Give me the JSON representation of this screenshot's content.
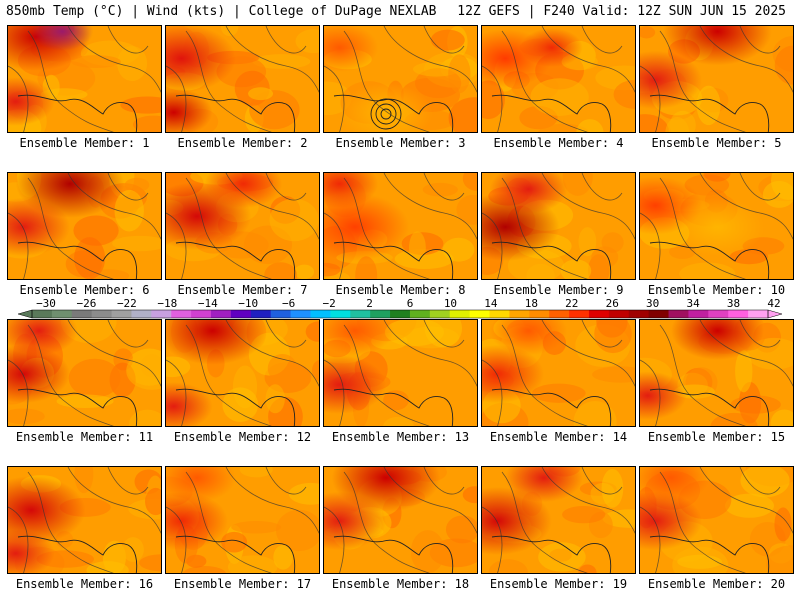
{
  "header": {
    "left": "850mb Temp (°C) | Wind (kts) | College of DuPage NEXLAB",
    "right": "12Z GEFS | F240 Valid: 12Z SUN JUN 15 2025"
  },
  "panels": [
    {
      "caption": "Ensemble Member: 1",
      "hot": [
        [
          0.18,
          0.1,
          0.35,
          "#cc0000"
        ],
        [
          0.35,
          0.05,
          0.2,
          "#9b1a6a"
        ],
        [
          0.05,
          0.7,
          0.25,
          "#e31d10"
        ]
      ]
    },
    {
      "caption": "Ensemble Member: 2",
      "hot": [
        [
          0.1,
          0.3,
          0.35,
          "#e0140c"
        ],
        [
          0.05,
          0.8,
          0.25,
          "#cc0000"
        ]
      ]
    },
    {
      "caption": "Ensemble Member: 3",
      "hot": [
        [
          0.1,
          0.2,
          0.25,
          "#ff5a00"
        ],
        [
          0.4,
          0.8,
          0.3,
          "#ffb400"
        ]
      ]
    },
    {
      "caption": "Ensemble Member: 4",
      "hot": [
        [
          0.15,
          0.3,
          0.3,
          "#ff3a00"
        ],
        [
          0.45,
          0.2,
          0.2,
          "#f02a05"
        ]
      ]
    },
    {
      "caption": "Ensemble Member: 5",
      "hot": [
        [
          0.5,
          0.05,
          0.35,
          "#cc0000"
        ],
        [
          0.1,
          0.5,
          0.3,
          "#e31d10"
        ]
      ]
    },
    {
      "caption": "Ensemble Member: 6",
      "hot": [
        [
          0.4,
          0.1,
          0.35,
          "#b00000"
        ],
        [
          0.1,
          0.5,
          0.3,
          "#e31d10"
        ]
      ]
    },
    {
      "caption": "Ensemble Member: 7",
      "hot": [
        [
          0.2,
          0.4,
          0.35,
          "#d40808"
        ],
        [
          0.5,
          0.1,
          0.25,
          "#f02a05"
        ]
      ]
    },
    {
      "caption": "Ensemble Member: 8",
      "hot": [
        [
          0.2,
          0.5,
          0.35,
          "#ff4000"
        ],
        [
          0.1,
          0.1,
          0.25,
          "#f02a05"
        ]
      ]
    },
    {
      "caption": "Ensemble Member: 9",
      "hot": [
        [
          0.15,
          0.5,
          0.35,
          "#b00000"
        ],
        [
          0.3,
          0.15,
          0.25,
          "#e31d10"
        ]
      ]
    },
    {
      "caption": "Ensemble Member: 10",
      "hot": [
        [
          0.1,
          0.3,
          0.3,
          "#ff4000"
        ],
        [
          0.5,
          0.5,
          0.3,
          "#ffb400"
        ]
      ]
    },
    {
      "caption": "Ensemble Member: 11",
      "hot": [
        [
          0.1,
          0.5,
          0.3,
          "#d40808"
        ],
        [
          0.2,
          0.1,
          0.25,
          "#e31d10"
        ]
      ]
    },
    {
      "caption": "Ensemble Member: 12",
      "hot": [
        [
          0.3,
          0.1,
          0.35,
          "#cc0000"
        ],
        [
          0.05,
          0.8,
          0.25,
          "#e31d10"
        ]
      ]
    },
    {
      "caption": "Ensemble Member: 13",
      "hot": [
        [
          0.1,
          0.6,
          0.3,
          "#e31d10"
        ],
        [
          0.2,
          0.1,
          0.25,
          "#ff5a00"
        ]
      ]
    },
    {
      "caption": "Ensemble Member: 14",
      "hot": [
        [
          0.1,
          0.5,
          0.3,
          "#f02a05"
        ],
        [
          0.3,
          0.1,
          0.25,
          "#ff5a00"
        ]
      ]
    },
    {
      "caption": "Ensemble Member: 15",
      "hot": [
        [
          0.5,
          0.1,
          0.3,
          "#cc0000"
        ],
        [
          0.05,
          0.7,
          0.25,
          "#e31d10"
        ]
      ]
    },
    {
      "caption": "Ensemble Member: 16",
      "hot": [
        [
          0.15,
          0.4,
          0.35,
          "#d40808"
        ],
        [
          0.05,
          0.8,
          0.25,
          "#e31d10"
        ]
      ]
    },
    {
      "caption": "Ensemble Member: 17",
      "hot": [
        [
          0.1,
          0.5,
          0.3,
          "#f02a05"
        ],
        [
          0.2,
          0.1,
          0.25,
          "#ff5a00"
        ]
      ]
    },
    {
      "caption": "Ensemble Member: 18",
      "hot": [
        [
          0.4,
          0.1,
          0.35,
          "#cc0000"
        ],
        [
          0.1,
          0.5,
          0.3,
          "#e31d10"
        ]
      ]
    },
    {
      "caption": "Ensemble Member: 19",
      "hot": [
        [
          0.1,
          0.5,
          0.35,
          "#d40808"
        ],
        [
          0.4,
          0.1,
          0.25,
          "#e31d10"
        ]
      ]
    },
    {
      "caption": "Ensemble Member: 20",
      "hot": [
        [
          0.1,
          0.5,
          0.3,
          "#e31d10"
        ],
        [
          0.2,
          0.1,
          0.25,
          "#ff5a00"
        ]
      ]
    }
  ],
  "colorbar": {
    "labels": [
      "−30",
      "−26",
      "−22",
      "−18",
      "−14",
      "−10",
      "−6",
      "−2",
      "2",
      "6",
      "10",
      "14",
      "18",
      "22",
      "26",
      "30",
      "34",
      "38",
      "42"
    ],
    "colors": [
      "#5a7a5a",
      "#6f8f6f",
      "#7a7a7a",
      "#8c8c8c",
      "#a0a0a0",
      "#b0b0c8",
      "#c8a0e0",
      "#e060e0",
      "#d040d0",
      "#a020c0",
      "#6000c0",
      "#2020c0",
      "#2060e0",
      "#1e90ff",
      "#00bfff",
      "#00e0e0",
      "#20c0a0",
      "#20a060",
      "#208020",
      "#60b020",
      "#a0d020",
      "#e0f000",
      "#ffff00",
      "#ffd700",
      "#ffa500",
      "#ff8c00",
      "#ff6000",
      "#ff3000",
      "#e00000",
      "#c00000",
      "#a00000",
      "#800000",
      "#a01060",
      "#c020a0",
      "#e040c0",
      "#ff60e0",
      "#ffa0f0"
    ]
  },
  "colors": {
    "base": "#ff9d00",
    "land_contour": "#333333",
    "coast": "#222222"
  }
}
